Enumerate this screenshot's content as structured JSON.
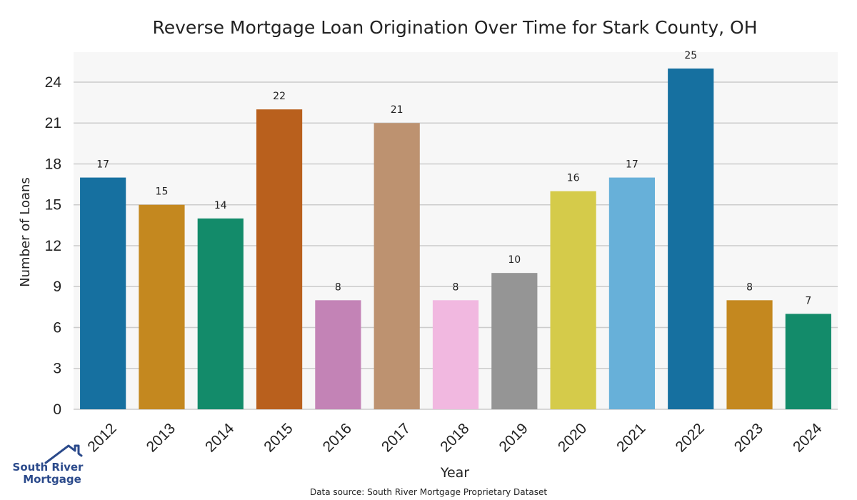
{
  "chart_data": {
    "type": "bar",
    "title": "Reverse Mortgage Loan Origination Over Time for Stark County, OH",
    "xlabel": "Year",
    "ylabel": "Number of Loans",
    "categories": [
      "2012",
      "2013",
      "2014",
      "2015",
      "2016",
      "2017",
      "2018",
      "2019",
      "2020",
      "2021",
      "2022",
      "2023",
      "2024"
    ],
    "values": [
      17,
      15,
      14,
      22,
      8,
      21,
      8,
      10,
      16,
      17,
      25,
      8,
      7
    ],
    "colors": [
      "#1670a0",
      "#c4881f",
      "#138b6a",
      "#b9601d",
      "#c383b6",
      "#bd9270",
      "#f1b8e0",
      "#959595",
      "#d5cb4a",
      "#67b0d9",
      "#1670a0",
      "#c4881f",
      "#138b6a"
    ],
    "yticks": [
      0,
      3,
      6,
      9,
      12,
      15,
      18,
      21,
      24
    ],
    "ylim": [
      0,
      26.2
    ],
    "grid": true,
    "plot_background": "#f7f7f7",
    "grid_color": "#cccccc"
  },
  "footer": {
    "source": "Data source: South River Mortgage Proprietary Dataset"
  },
  "logo": {
    "line1": "South River",
    "line2": "Mortgage",
    "icon": "house-icon",
    "color": "#2b4a8b"
  }
}
